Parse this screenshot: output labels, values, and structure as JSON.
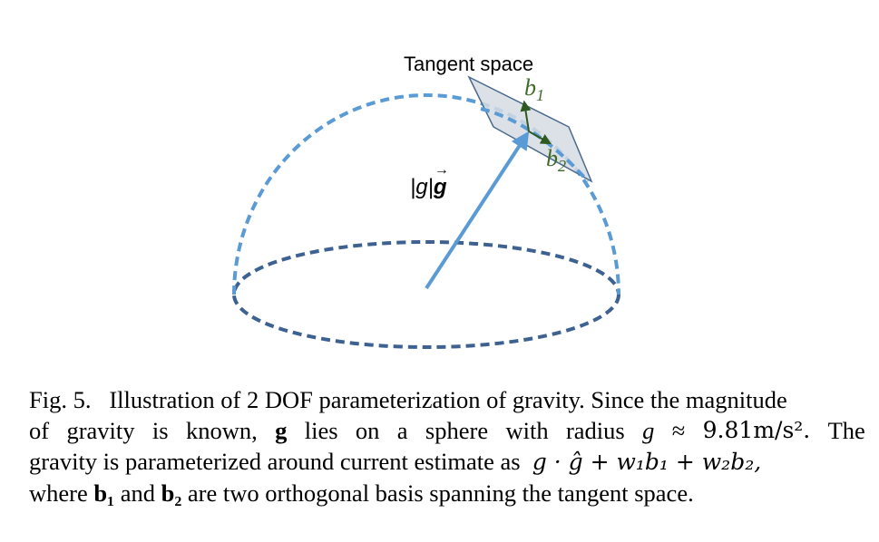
{
  "diagram": {
    "tangent_label": "Tangent space",
    "b1_label": "b",
    "b1_sub": "1",
    "b2_label": "b",
    "b2_sub": "2",
    "vector_label_magnitude": "|g|",
    "vector_label_unit": "g",
    "colors": {
      "sphere": "#5b9bd5",
      "base_ellipse": "#3d6190",
      "arrow": "#5b9bd5",
      "plane_fill": "#d6dbe3",
      "plane_stroke": "#4a6a8c",
      "basis_arrows": "#2e5a20",
      "basis_text": "#3f6b2a"
    }
  },
  "caption": {
    "fig_label": "Fig. 5.",
    "line1": "Illustration of 2 DOF parameterization of gravity. Since the magnitude",
    "line2_words": [
      "of",
      "gravity",
      "is",
      "known,",
      "g",
      "lies",
      "on",
      "a",
      "sphere",
      "with",
      "radius",
      "g",
      "≈",
      "9.81m/s²."
    ],
    "line2_tail": "The",
    "line3_text": "gravity is parameterized around current estimate as",
    "line3_math": "g · ĝ + w₁b₁ + w₂b₂,",
    "line4_pre": "where",
    "line4_b1": "b₁",
    "line4_mid": "and",
    "line4_b2": "b₂",
    "line4_post": "are two orthogonal basis spanning the tangent space."
  }
}
